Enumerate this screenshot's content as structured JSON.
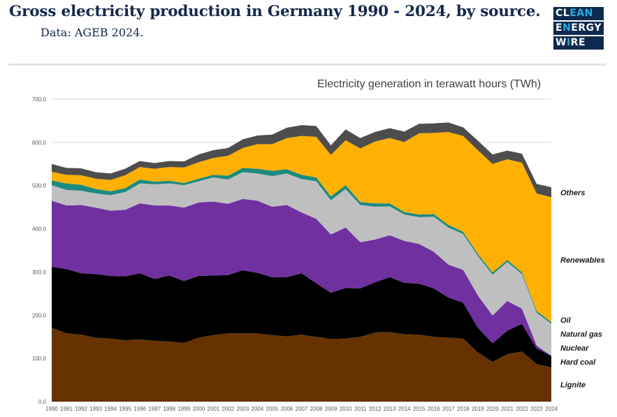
{
  "header": {
    "title": "Gross electricity production in Germany 1990 - 2024, by source.",
    "subtitle": "Data: AGEB 2024.",
    "logo": [
      "CLEAN",
      "ENERGY",
      "WIRE"
    ]
  },
  "colors": {
    "Lignite": "#663300",
    "Hard coal": "#000000",
    "Nuclear": "#7030a0",
    "Natural gas": "#bfbfbf",
    "Oil": "#1c8a80",
    "Renewables": "#ffb000",
    "Others": "#4d4d4d"
  },
  "chart_data": {
    "type": "area",
    "stacked": true,
    "title": "Electricity generation in terawatt hours (TWh)",
    "xlabel": "",
    "ylabel": "",
    "ylim": [
      0,
      700
    ],
    "yticks": [
      "0.0",
      "100.0",
      "200.0",
      "300.0",
      "400.0",
      "500.0",
      "600.0",
      "700.0"
    ],
    "grid": true,
    "legend": "right, labels beside series",
    "x": [
      "1990",
      "1991",
      "1992",
      "1993",
      "1994",
      "1995",
      "1996",
      "1997",
      "1998",
      "1999",
      "2000",
      "2001",
      "2002",
      "2003",
      "2004",
      "2005",
      "2006",
      "2007",
      "2008",
      "2009",
      "2010",
      "2011",
      "2012",
      "2013",
      "2014",
      "2015",
      "2016",
      "2017",
      "2018",
      "2019",
      "2020",
      "2021",
      "2022",
      "2023",
      "2024"
    ],
    "series": [
      {
        "name": "Lignite",
        "values": [
          171,
          158,
          155,
          148,
          146,
          142,
          144,
          141,
          139,
          136,
          148,
          154,
          158,
          158,
          158,
          154,
          151,
          155,
          150,
          145,
          146,
          150,
          160,
          161,
          156,
          155,
          150,
          148,
          146,
          114,
          92,
          110,
          116,
          87,
          79
        ]
      },
      {
        "name": "Hard coal",
        "values": [
          141,
          149,
          142,
          147,
          145,
          148,
          153,
          143,
          153,
          143,
          143,
          138,
          135,
          146,
          140,
          134,
          137,
          142,
          124,
          107,
          117,
          112,
          116,
          127,
          119,
          118,
          112,
          93,
          83,
          57,
          43,
          54,
          64,
          36,
          27
        ]
      },
      {
        "name": "Nuclear",
        "values": [
          153,
          147,
          158,
          154,
          151,
          154,
          162,
          170,
          162,
          170,
          170,
          171,
          165,
          165,
          167,
          163,
          167,
          141,
          149,
          135,
          140,
          107,
          99,
          97,
          97,
          92,
          85,
          76,
          76,
          75,
          64,
          69,
          35,
          7,
          0
        ]
      },
      {
        "name": "Natural gas",
        "values": [
          36,
          36,
          33,
          33,
          36,
          41,
          46,
          49,
          51,
          52,
          49,
          56,
          56,
          62,
          63,
          71,
          73,
          77,
          87,
          79,
          89,
          86,
          76,
          67,
          61,
          62,
          81,
          86,
          83,
          91,
          95,
          90,
          80,
          76,
          74
        ]
      },
      {
        "name": "Oil",
        "values": [
          11,
          15,
          14,
          10,
          9,
          9,
          9,
          6,
          6,
          5,
          6,
          6,
          9,
          10,
          11,
          12,
          10,
          10,
          9,
          9,
          9,
          7,
          8,
          7,
          6,
          6,
          6,
          6,
          5,
          5,
          5,
          5,
          4,
          4,
          4
        ]
      },
      {
        "name": "Renewables",
        "values": [
          20,
          20,
          22,
          24,
          26,
          30,
          29,
          30,
          32,
          36,
          38,
          39,
          46,
          46,
          57,
          62,
          72,
          90,
          94,
          96,
          104,
          124,
          143,
          151,
          162,
          188,
          188,
          215,
          222,
          240,
          251,
          233,
          254,
          272,
          289
        ]
      },
      {
        "name": "Others",
        "values": [
          18,
          16,
          16,
          15,
          15,
          15,
          14,
          13,
          14,
          14,
          18,
          18,
          18,
          20,
          20,
          22,
          24,
          25,
          25,
          22,
          25,
          24,
          22,
          23,
          24,
          22,
          22,
          22,
          20,
          22,
          22,
          20,
          21,
          22,
          23
        ]
      }
    ],
    "series_labels": [
      "Others",
      "Renewables",
      "Oil",
      "Natural gas",
      "Nuclear",
      "Hard coal",
      "Lignite"
    ]
  }
}
